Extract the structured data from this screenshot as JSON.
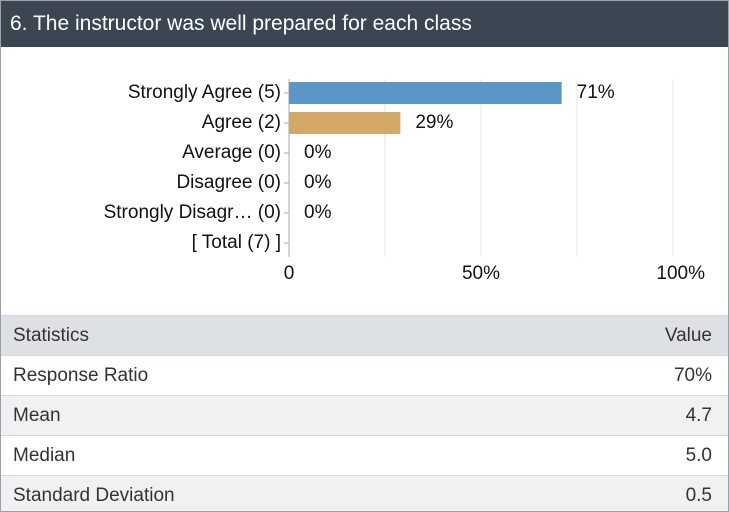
{
  "header": {
    "title": "6. The instructor was well prepared for each class"
  },
  "chart_data": {
    "type": "bar",
    "orientation": "horizontal",
    "categories": [
      "Strongly Agree (5)",
      "Agree (2)",
      "Average (0)",
      "Disagree (0)",
      "Strongly Disagr… (0)",
      "[ Total (7) ]"
    ],
    "values": [
      71,
      29,
      0,
      0,
      0,
      null
    ],
    "value_labels": [
      "71%",
      "29%",
      "0%",
      "0%",
      "0%",
      null
    ],
    "colors": [
      "#5b97c6",
      "#d3a865",
      null,
      null,
      null,
      null
    ],
    "xlim": [
      0,
      100
    ],
    "xticks": [
      0,
      {
        "value": 50,
        "label": "50%"
      },
      {
        "value": 100,
        "label": "100%"
      }
    ],
    "minor_xticks": [
      25,
      75
    ],
    "grid": true
  },
  "table": {
    "header": [
      "Statistics",
      "Value"
    ],
    "rows": [
      [
        "Response Ratio",
        "70%"
      ],
      [
        "Mean",
        "4.7"
      ],
      [
        "Median",
        "5.0"
      ],
      [
        "Standard Deviation",
        "0.5"
      ]
    ]
  }
}
